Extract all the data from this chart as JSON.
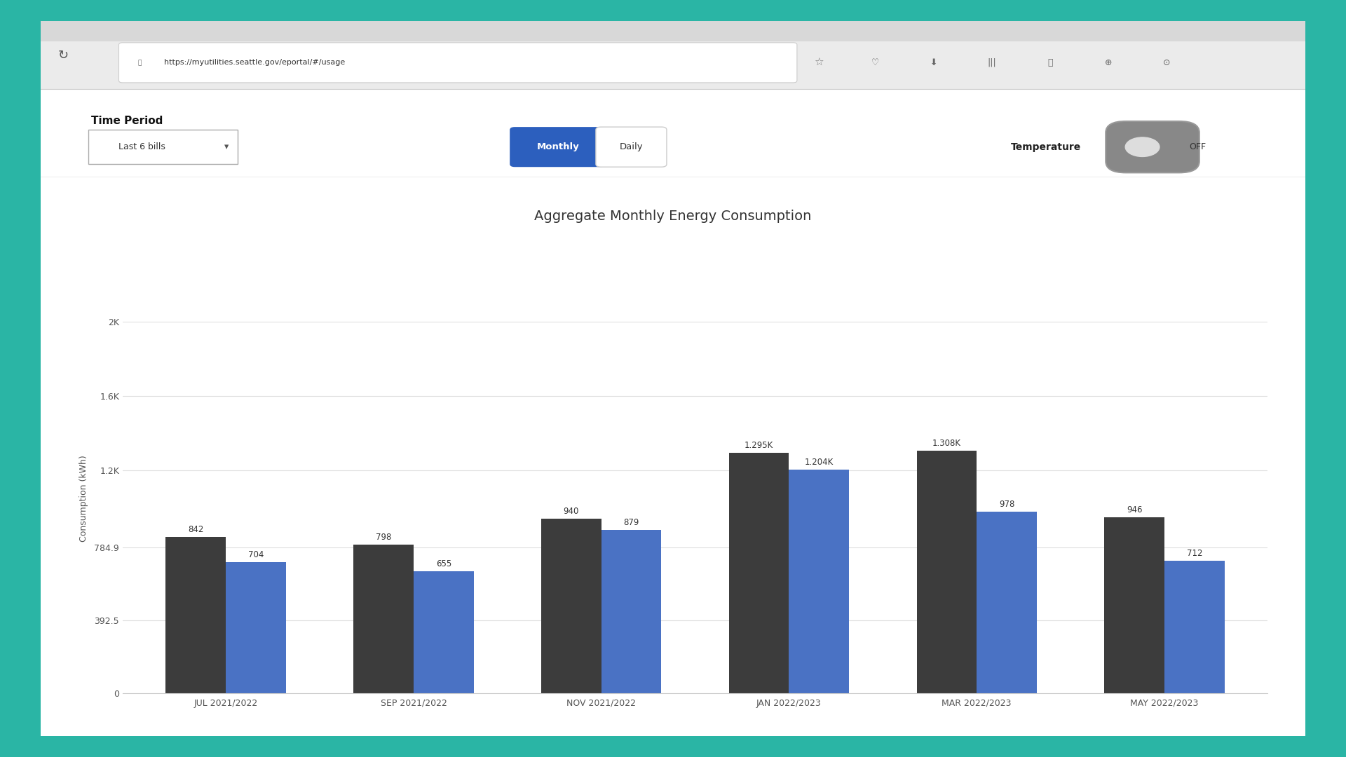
{
  "title": "Aggregate Monthly Energy Consumption",
  "ylabel": "Consumption (kWh)",
  "categories": [
    "JUL 2021/2022",
    "SEP 2021/2022",
    "NOV 2021/2022",
    "JAN 2022/2023",
    "MAR 2022/2023",
    "MAY 2022/2023"
  ],
  "values_dark": [
    842,
    798,
    940,
    1295,
    1308,
    946
  ],
  "values_blue": [
    704,
    655,
    879,
    1204,
    978,
    712
  ],
  "labels_dark": [
    "842",
    "798",
    "940",
    "1.295K",
    "1.308K",
    "946"
  ],
  "labels_blue": [
    "704",
    "655",
    "879",
    "1.204K",
    "978",
    "712"
  ],
  "color_dark": "#3c3c3c",
  "color_blue": "#4a72c4",
  "bar_width": 0.32,
  "yticks": [
    0,
    392.5,
    784.9,
    1200,
    1600,
    2000
  ],
  "ytick_labels": [
    "0",
    "392.5",
    "784.9",
    "1.2K",
    "1.6K",
    "2K"
  ],
  "ylim": [
    0,
    2100
  ],
  "background_color": "#ffffff",
  "outer_bg": "#2ab5a5",
  "title_fontsize": 14,
  "label_fontsize": 8.5,
  "tick_fontsize": 9,
  "ylabel_fontsize": 9,
  "browser_tab_color": "#e8e8e8",
  "url_text": "https://myutilities.seattle.gov/eportal/#/usage",
  "time_period_label": "Time Period",
  "dropdown_label": "Last 6 bills",
  "monthly_label": "Monthly",
  "daily_label": "Daily",
  "temperature_label": "Temperature",
  "off_label": "OFF"
}
